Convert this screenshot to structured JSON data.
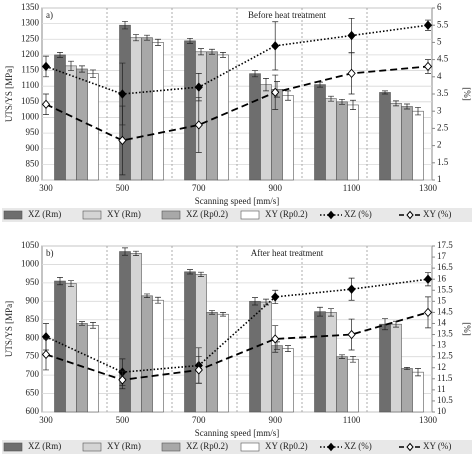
{
  "chart_data": [
    {
      "type": "bar",
      "annotations": [
        "a)",
        "Before heat treatment"
      ],
      "ylabel": "UTS/YS [MPa]",
      "y2label": "[%]",
      "xlabel": "Scanning speed [mm/s]",
      "categories": [
        300,
        500,
        700,
        900,
        1100,
        1300
      ],
      "ylim": [
        800,
        1350
      ],
      "yticks": [
        800,
        850,
        900,
        950,
        1000,
        1050,
        1100,
        1150,
        1200,
        1250,
        1300,
        1350
      ],
      "y2lim": [
        1,
        6
      ],
      "y2ticks": [
        1,
        1.5,
        2,
        2.5,
        3,
        3.5,
        4,
        4.5,
        5,
        5.5,
        6
      ],
      "grid": true,
      "series": [
        {
          "name": "XZ (Rm)",
          "color": "#6e6e6e",
          "values": [
            1200,
            1295,
            1245,
            1140,
            1105,
            1080
          ],
          "errors": [
            8,
            12,
            8,
            10,
            8,
            5
          ]
        },
        {
          "name": "XY (Rm)",
          "color": "#d4d4d4",
          "values": [
            1165,
            1255,
            1210,
            1105,
            1060,
            1045
          ],
          "errors": [
            15,
            10,
            10,
            20,
            8,
            8
          ]
        },
        {
          "name": "XZ (Rp0.2)",
          "color": "#a8a8a8",
          "values": [
            1155,
            1255,
            1210,
            1090,
            1050,
            1035
          ],
          "errors": [
            10,
            8,
            8,
            25,
            8,
            8
          ]
        },
        {
          "name": "XY (Rp0.2)",
          "color": "#ffffff",
          "values": [
            1140,
            1240,
            1200,
            1070,
            1040,
            1020
          ],
          "errors": [
            12,
            10,
            8,
            15,
            15,
            12
          ]
        },
        {
          "name": "XZ (%)",
          "color": "#000000",
          "axis": "y2",
          "dash": "dotted",
          "marker": "filled",
          "values": [
            4.3,
            3.5,
            3.7,
            4.9,
            5.2,
            5.5
          ],
          "errors": [
            0.3,
            0.9,
            0.4,
            0.7,
            0.5,
            0.15
          ]
        },
        {
          "name": "XY (%)",
          "color": "#000000",
          "axis": "y2",
          "dash": "dashed",
          "marker": "open",
          "values": [
            3.2,
            2.15,
            2.6,
            3.55,
            4.1,
            4.3
          ],
          "errors": [
            0.3,
            1.0,
            0.8,
            0.5,
            0.6,
            0.2
          ]
        }
      ]
    },
    {
      "type": "bar",
      "annotations": [
        "b)",
        "After heat treatment"
      ],
      "ylabel": "UTS/YS [MPa]",
      "y2label": "[%]",
      "xlabel": "Scanning speed [mm/s]",
      "categories": [
        300,
        500,
        700,
        900,
        1100,
        1300
      ],
      "ylim": [
        600,
        1050
      ],
      "yticks": [
        600,
        650,
        700,
        750,
        800,
        850,
        900,
        950,
        1000,
        1050
      ],
      "y2lim": [
        10,
        17.5
      ],
      "y2ticks": [
        10,
        10.5,
        11,
        11.5,
        12,
        12.5,
        13,
        13.5,
        14,
        14.5,
        15,
        15.5,
        16,
        16.5,
        17,
        17.5
      ],
      "grid": true,
      "series": [
        {
          "name": "XZ (Rm)",
          "color": "#6e6e6e",
          "values": [
            955,
            1035,
            980,
            900,
            872,
            838
          ],
          "errors": [
            10,
            10,
            6,
            10,
            12,
            15
          ]
        },
        {
          "name": "XY (Rm)",
          "color": "#d4d4d4",
          "values": [
            948,
            1030,
            973,
            898,
            870,
            838
          ],
          "errors": [
            8,
            6,
            6,
            8,
            10,
            8
          ]
        },
        {
          "name": "XZ (Rp0.2)",
          "color": "#a8a8a8",
          "values": [
            840,
            915,
            870,
            780,
            750,
            718
          ],
          "errors": [
            5,
            5,
            5,
            10,
            5,
            3
          ]
        },
        {
          "name": "XY (Rp0.2)",
          "color": "#ffffff",
          "values": [
            835,
            903,
            865,
            772,
            743,
            708
          ],
          "errors": [
            8,
            8,
            5,
            8,
            8,
            10
          ]
        },
        {
          "name": "XZ (%)",
          "color": "#000000",
          "axis": "y2",
          "dash": "dotted",
          "marker": "filled",
          "values": [
            13.4,
            11.8,
            12.1,
            15.2,
            15.55,
            16.0
          ],
          "errors": [
            0.6,
            0.6,
            0.8,
            0.3,
            0.5,
            0.3
          ]
        },
        {
          "name": "XY (%)",
          "color": "#000000",
          "axis": "y2",
          "dash": "dashed",
          "marker": "open",
          "values": [
            12.6,
            11.45,
            11.9,
            13.3,
            13.5,
            14.5
          ],
          "errors": [
            0.7,
            0.4,
            0.6,
            0.6,
            0.7,
            0.7
          ]
        }
      ]
    }
  ]
}
